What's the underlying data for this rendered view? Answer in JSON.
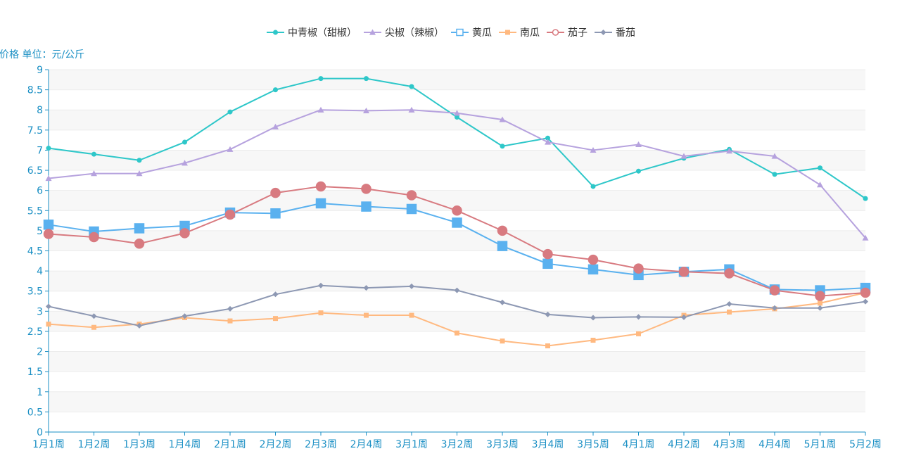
{
  "chart_data": {
    "type": "line",
    "ylabel": "价格 单位：元/公斤",
    "ylim": [
      0,
      9
    ],
    "yticks": [
      "0",
      "0.5",
      "1",
      "1.5",
      "2",
      "2.5",
      "3",
      "3.5",
      "4",
      "4.5",
      "5",
      "5.5",
      "6",
      "6.5",
      "7",
      "7.5",
      "8",
      "8.5",
      "9"
    ],
    "y_step": 0.5,
    "grid": "horizontal alternating bands",
    "legend_position": "top-center",
    "categories": [
      "1月1周",
      "1月2周",
      "1月3周",
      "1月4周",
      "2月1周",
      "2月2周",
      "2月3周",
      "2月4周",
      "3月1周",
      "3月2周",
      "3月3周",
      "3月4周",
      "3月5周",
      "4月1周",
      "4月2周",
      "4月3周",
      "4月4周",
      "5月1周",
      "5月2周"
    ],
    "series": [
      {
        "name": "中青椒（甜椒）",
        "color": "#2ec7c9",
        "marker": "circle",
        "values": [
          7.05,
          6.9,
          6.75,
          7.2,
          7.95,
          8.5,
          8.78,
          8.78,
          8.58,
          7.82,
          7.1,
          7.3,
          6.1,
          6.48,
          6.8,
          7.02,
          6.4,
          6.56,
          5.8
        ]
      },
      {
        "name": "尖椒（辣椒）",
        "color": "#b6a2de",
        "marker": "triangle",
        "values": [
          6.3,
          6.42,
          6.42,
          6.68,
          7.02,
          7.58,
          8.0,
          7.98,
          8.0,
          7.92,
          7.76,
          7.2,
          7.0,
          7.14,
          6.85,
          6.98,
          6.85,
          6.14,
          4.82
        ]
      },
      {
        "name": "黄瓜",
        "color": "#5ab1ef",
        "marker": "emptySquare",
        "values": [
          5.15,
          4.98,
          5.06,
          5.12,
          5.45,
          5.43,
          5.68,
          5.6,
          5.54,
          5.2,
          4.62,
          4.18,
          4.04,
          3.9,
          3.98,
          4.04,
          3.54,
          3.52,
          3.58
        ]
      },
      {
        "name": "南瓜",
        "color": "#ffb980",
        "marker": "square",
        "values": [
          2.68,
          2.6,
          2.68,
          2.84,
          2.76,
          2.82,
          2.96,
          2.9,
          2.9,
          2.46,
          2.26,
          2.14,
          2.28,
          2.44,
          2.9,
          2.98,
          3.06,
          3.2,
          3.46
        ]
      },
      {
        "name": "茄子",
        "color": "#d87a80",
        "marker": "emptyCircle",
        "values": [
          4.92,
          4.84,
          4.68,
          4.94,
          5.4,
          5.94,
          6.1,
          6.04,
          5.88,
          5.5,
          5.0,
          4.42,
          4.28,
          4.06,
          3.98,
          3.94,
          3.52,
          3.38,
          3.46
        ]
      },
      {
        "name": "番茄",
        "color": "#8d98b3",
        "marker": "diamond",
        "values": [
          3.12,
          2.88,
          2.64,
          2.88,
          3.06,
          3.42,
          3.64,
          3.58,
          3.62,
          3.52,
          3.22,
          2.92,
          2.84,
          2.86,
          2.85,
          3.18,
          3.08,
          3.08,
          3.24
        ]
      }
    ]
  }
}
